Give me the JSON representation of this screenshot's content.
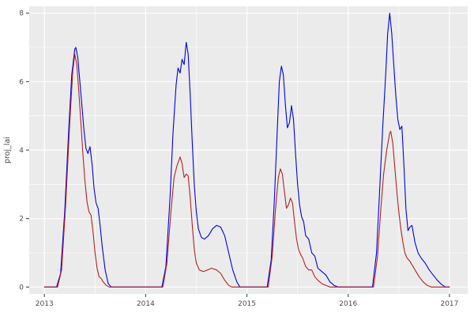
{
  "figure": {
    "background": "#FFFFFF",
    "panel_background": "#EBEBEB",
    "grid_major_color": "#FFFFFF",
    "grid_minor_color": "#FFFFFF",
    "axis_text_color": "#4D4D4D",
    "tick_mark_color": "#333333"
  },
  "chart_data": {
    "type": "line",
    "title": "",
    "xlabel": "",
    "ylabel": "proj_lai",
    "xlim": [
      2012.85,
      2017.18
    ],
    "ylim": [
      -0.2,
      8.2
    ],
    "x_ticks": [
      2013,
      2014,
      2015,
      2016,
      2017
    ],
    "y_ticks": [
      0,
      2,
      4,
      6,
      8
    ],
    "x_minor_ticks": [
      2013.5,
      2014.5,
      2015.5,
      2016.5
    ],
    "y_minor_ticks": [
      1,
      3,
      5,
      7
    ],
    "grid": true,
    "legend": "none",
    "series": [
      {
        "name": "blue",
        "color": "#0000EE",
        "points": [
          [
            2013.0,
            0
          ],
          [
            2013.12,
            0
          ],
          [
            2013.16,
            0.4
          ],
          [
            2013.2,
            2.2
          ],
          [
            2013.24,
            4.6
          ],
          [
            2013.27,
            6.2
          ],
          [
            2013.3,
            6.95
          ],
          [
            2013.31,
            7.0
          ],
          [
            2013.33,
            6.7
          ],
          [
            2013.35,
            6.0
          ],
          [
            2013.37,
            5.3
          ],
          [
            2013.39,
            4.6
          ],
          [
            2013.41,
            4.05
          ],
          [
            2013.43,
            3.9
          ],
          [
            2013.45,
            4.1
          ],
          [
            2013.47,
            3.6
          ],
          [
            2013.49,
            2.9
          ],
          [
            2013.51,
            2.45
          ],
          [
            2013.53,
            2.3
          ],
          [
            2013.55,
            1.8
          ],
          [
            2013.57,
            1.2
          ],
          [
            2013.6,
            0.5
          ],
          [
            2013.63,
            0.1
          ],
          [
            2013.66,
            0
          ],
          [
            2014.16,
            0
          ],
          [
            2014.2,
            0.6
          ],
          [
            2014.24,
            2.6
          ],
          [
            2014.27,
            4.5
          ],
          [
            2014.3,
            5.9
          ],
          [
            2014.32,
            6.4
          ],
          [
            2014.34,
            6.25
          ],
          [
            2014.36,
            6.65
          ],
          [
            2014.38,
            6.5
          ],
          [
            2014.4,
            7.15
          ],
          [
            2014.42,
            6.8
          ],
          [
            2014.44,
            5.6
          ],
          [
            2014.46,
            4.2
          ],
          [
            2014.48,
            3.0
          ],
          [
            2014.5,
            2.2
          ],
          [
            2014.52,
            1.7
          ],
          [
            2014.55,
            1.45
          ],
          [
            2014.58,
            1.4
          ],
          [
            2014.62,
            1.5
          ],
          [
            2014.66,
            1.7
          ],
          [
            2014.7,
            1.8
          ],
          [
            2014.74,
            1.75
          ],
          [
            2014.78,
            1.5
          ],
          [
            2014.82,
            1.0
          ],
          [
            2014.86,
            0.5
          ],
          [
            2014.9,
            0.15
          ],
          [
            2014.93,
            0
          ],
          [
            2015.2,
            0
          ],
          [
            2015.24,
            0.8
          ],
          [
            2015.27,
            2.5
          ],
          [
            2015.3,
            4.6
          ],
          [
            2015.32,
            6.0
          ],
          [
            2015.34,
            6.45
          ],
          [
            2015.36,
            6.2
          ],
          [
            2015.38,
            5.3
          ],
          [
            2015.4,
            4.65
          ],
          [
            2015.42,
            4.8
          ],
          [
            2015.44,
            5.3
          ],
          [
            2015.46,
            4.9
          ],
          [
            2015.48,
            3.9
          ],
          [
            2015.5,
            3.0
          ],
          [
            2015.52,
            2.4
          ],
          [
            2015.54,
            2.05
          ],
          [
            2015.56,
            1.9
          ],
          [
            2015.58,
            1.5
          ],
          [
            2015.61,
            1.4
          ],
          [
            2015.64,
            1.0
          ],
          [
            2015.67,
            0.9
          ],
          [
            2015.7,
            0.55
          ],
          [
            2015.74,
            0.45
          ],
          [
            2015.78,
            0.35
          ],
          [
            2015.82,
            0.15
          ],
          [
            2015.86,
            0.05
          ],
          [
            2015.9,
            0
          ],
          [
            2016.24,
            0
          ],
          [
            2016.28,
            1.0
          ],
          [
            2016.31,
            2.8
          ],
          [
            2016.34,
            4.6
          ],
          [
            2016.37,
            6.2
          ],
          [
            2016.39,
            7.4
          ],
          [
            2016.41,
            8.0
          ],
          [
            2016.43,
            7.4
          ],
          [
            2016.45,
            6.5
          ],
          [
            2016.47,
            5.6
          ],
          [
            2016.49,
            4.9
          ],
          [
            2016.51,
            4.6
          ],
          [
            2016.53,
            4.7
          ],
          [
            2016.55,
            3.6
          ],
          [
            2016.57,
            2.3
          ],
          [
            2016.59,
            1.65
          ],
          [
            2016.61,
            1.75
          ],
          [
            2016.63,
            1.8
          ],
          [
            2016.66,
            1.3
          ],
          [
            2016.69,
            1.0
          ],
          [
            2016.72,
            0.85
          ],
          [
            2016.76,
            0.7
          ],
          [
            2016.8,
            0.5
          ],
          [
            2016.84,
            0.35
          ],
          [
            2016.88,
            0.2
          ],
          [
            2016.92,
            0.08
          ],
          [
            2016.96,
            0
          ],
          [
            2017.0,
            0
          ]
        ]
      },
      {
        "name": "red",
        "color": "#B22222",
        "points": [
          [
            2013.0,
            0
          ],
          [
            2013.13,
            0
          ],
          [
            2013.17,
            0.5
          ],
          [
            2013.21,
            2.4
          ],
          [
            2013.25,
            4.8
          ],
          [
            2013.28,
            6.3
          ],
          [
            2013.3,
            6.8
          ],
          [
            2013.32,
            6.5
          ],
          [
            2013.34,
            5.7
          ],
          [
            2013.36,
            4.8
          ],
          [
            2013.38,
            3.9
          ],
          [
            2013.4,
            3.1
          ],
          [
            2013.42,
            2.5
          ],
          [
            2013.44,
            2.2
          ],
          [
            2013.46,
            2.1
          ],
          [
            2013.48,
            1.6
          ],
          [
            2013.5,
            1.0
          ],
          [
            2013.52,
            0.55
          ],
          [
            2013.54,
            0.3
          ],
          [
            2013.56,
            0.25
          ],
          [
            2013.58,
            0.15
          ],
          [
            2013.61,
            0.05
          ],
          [
            2013.64,
            0
          ],
          [
            2014.17,
            0
          ],
          [
            2014.21,
            0.7
          ],
          [
            2014.25,
            2.2
          ],
          [
            2014.28,
            3.2
          ],
          [
            2014.31,
            3.55
          ],
          [
            2014.34,
            3.8
          ],
          [
            2014.36,
            3.6
          ],
          [
            2014.38,
            3.2
          ],
          [
            2014.4,
            3.3
          ],
          [
            2014.42,
            3.25
          ],
          [
            2014.44,
            2.6
          ],
          [
            2014.46,
            1.8
          ],
          [
            2014.48,
            1.1
          ],
          [
            2014.5,
            0.7
          ],
          [
            2014.53,
            0.5
          ],
          [
            2014.57,
            0.45
          ],
          [
            2014.61,
            0.5
          ],
          [
            2014.65,
            0.55
          ],
          [
            2014.7,
            0.5
          ],
          [
            2014.74,
            0.4
          ],
          [
            2014.78,
            0.2
          ],
          [
            2014.82,
            0.05
          ],
          [
            2014.85,
            0
          ],
          [
            2015.21,
            0
          ],
          [
            2015.25,
            0.9
          ],
          [
            2015.28,
            2.2
          ],
          [
            2015.31,
            3.2
          ],
          [
            2015.33,
            3.45
          ],
          [
            2015.35,
            3.3
          ],
          [
            2015.37,
            2.8
          ],
          [
            2015.39,
            2.3
          ],
          [
            2015.41,
            2.4
          ],
          [
            2015.43,
            2.6
          ],
          [
            2015.45,
            2.45
          ],
          [
            2015.47,
            1.9
          ],
          [
            2015.49,
            1.4
          ],
          [
            2015.51,
            1.1
          ],
          [
            2015.53,
            0.95
          ],
          [
            2015.55,
            0.85
          ],
          [
            2015.58,
            0.6
          ],
          [
            2015.61,
            0.5
          ],
          [
            2015.64,
            0.5
          ],
          [
            2015.67,
            0.3
          ],
          [
            2015.7,
            0.2
          ],
          [
            2015.74,
            0.1
          ],
          [
            2015.78,
            0.05
          ],
          [
            2015.82,
            0
          ],
          [
            2016.25,
            0
          ],
          [
            2016.29,
            0.9
          ],
          [
            2016.32,
            2.2
          ],
          [
            2016.35,
            3.3
          ],
          [
            2016.38,
            4.0
          ],
          [
            2016.41,
            4.5
          ],
          [
            2016.42,
            4.55
          ],
          [
            2016.44,
            4.2
          ],
          [
            2016.46,
            3.5
          ],
          [
            2016.48,
            2.8
          ],
          [
            2016.5,
            2.2
          ],
          [
            2016.52,
            1.7
          ],
          [
            2016.54,
            1.3
          ],
          [
            2016.56,
            1.0
          ],
          [
            2016.58,
            0.85
          ],
          [
            2016.61,
            0.75
          ],
          [
            2016.64,
            0.6
          ],
          [
            2016.67,
            0.45
          ],
          [
            2016.7,
            0.3
          ],
          [
            2016.74,
            0.15
          ],
          [
            2016.78,
            0.05
          ],
          [
            2016.82,
            0
          ],
          [
            2017.0,
            0
          ]
        ]
      }
    ]
  }
}
